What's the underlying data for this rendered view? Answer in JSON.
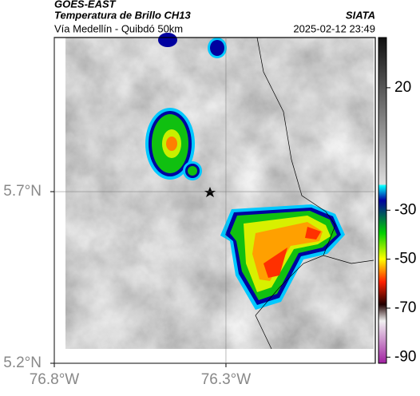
{
  "header": {
    "title": "GOES-EAST",
    "subtitle": "Temperatura de Brillo CH13",
    "route": "Vía Medellín - Quibdó 50km",
    "source": "SIATA",
    "timestamp": "2025-02-12 23:49"
  },
  "map": {
    "xlim": [
      -76.8,
      -75.865
    ],
    "ylim": [
      5.2,
      6.149
    ],
    "xticks": [
      {
        "value": -76.8,
        "label": "76.8°W"
      },
      {
        "value": -76.3,
        "label": "76.3°W"
      }
    ],
    "yticks": [
      {
        "value": 5.7,
        "label": "5.7°N"
      },
      {
        "value": 5.2,
        "label": "5.2°N"
      }
    ],
    "grid": true
  },
  "colorbar": {
    "lim": [
      -92.5,
      40.5
    ],
    "ticks": [
      20,
      -30,
      -50,
      -70,
      -90
    ]
  }
}
